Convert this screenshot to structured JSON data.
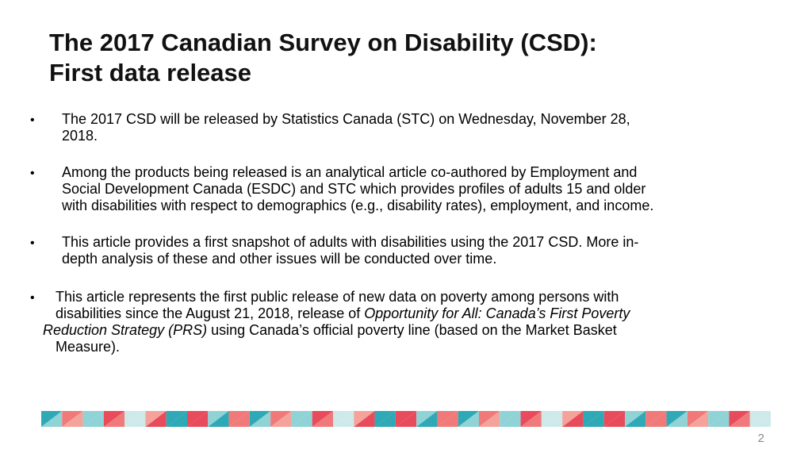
{
  "slide": {
    "title_line1": "The 2017 Canadian Survey on Disability (CSD):",
    "title_line2": "First data release",
    "bullet_char": "•",
    "bullets": [
      {
        "lines": [
          "The 2017 CSD will be released by Statistics Canada (STC) on Wednesday, November 28,",
          "2018."
        ]
      },
      {
        "lines": [
          "Among the products being released is an analytical article co-authored by Employment and",
          "Social Development Canada (ESDC) and STC which provides profiles of adults 15 and older",
          "with disabilities with respect to demographics (e.g., disability rates), employment, and income."
        ]
      },
      {
        "lines": [
          "This article provides a first snapshot of adults with disabilities using the 2017 CSD.  More in-",
          "depth analysis of these and other issues will be conducted over time."
        ]
      },
      {
        "line1": "This article represents the first public release of new data on poverty among persons with",
        "line2_plain": "disabilities since the August 21, 2018, release of ",
        "line2_italic": "Opportunity for All: Canada’s First Poverty",
        "line3_italic": "Reduction Strategy (PRS)",
        "line3_plain": " using Canada’s official poverty line (based on the Market Basket",
        "line4": "Measure)."
      }
    ],
    "page_number": "2",
    "colors": {
      "teal": "#2ea9b5",
      "coral": "#f07a7a",
      "red": "#e84c5c",
      "light_teal": "#8fd3d6",
      "pale": "#cfe9ea",
      "salmon": "#f5a39a"
    }
  }
}
